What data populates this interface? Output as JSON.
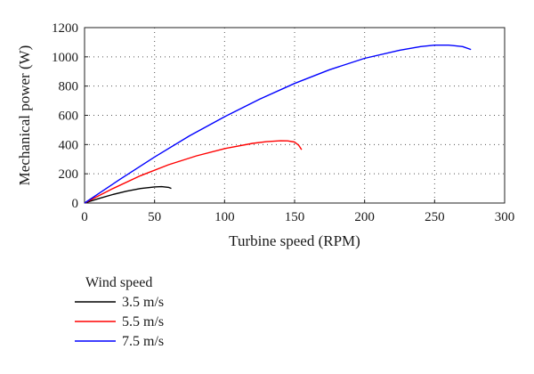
{
  "chart_data": {
    "type": "line",
    "xlabel": "Turbine speed (RPM)",
    "ylabel": "Mechanical power (W)",
    "xlim": [
      0,
      300
    ],
    "ylim": [
      0,
      1200
    ],
    "xticks": [
      "0",
      "50",
      "100",
      "150",
      "200",
      "250",
      "300"
    ],
    "yticks": [
      "0",
      "200",
      "400",
      "600",
      "800",
      "1000",
      "1200"
    ],
    "grid": true,
    "legend": {
      "title": "Wind speed",
      "placement": "below-left"
    },
    "series": [
      {
        "name": "3.5 m/s",
        "color": "#000000",
        "x": [
          0,
          10,
          20,
          30,
          40,
          50,
          55,
          60,
          62
        ],
        "y": [
          0,
          30,
          58,
          81,
          99,
          110,
          112,
          107,
          100
        ]
      },
      {
        "name": "5.5 m/s",
        "color": "#ff0000",
        "x": [
          0,
          20,
          40,
          60,
          80,
          100,
          120,
          130,
          140,
          145,
          150,
          153,
          155
        ],
        "y": [
          0,
          98,
          187,
          262,
          323,
          372,
          408,
          420,
          426,
          425,
          417,
          395,
          365
        ]
      },
      {
        "name": "7.5 m/s",
        "color": "#0000ff",
        "x": [
          0,
          25,
          50,
          75,
          100,
          125,
          150,
          175,
          200,
          225,
          240,
          250,
          260,
          270,
          276
        ],
        "y": [
          0,
          160,
          315,
          460,
          590,
          710,
          818,
          912,
          990,
          1045,
          1070,
          1080,
          1080,
          1070,
          1050
        ]
      }
    ]
  }
}
